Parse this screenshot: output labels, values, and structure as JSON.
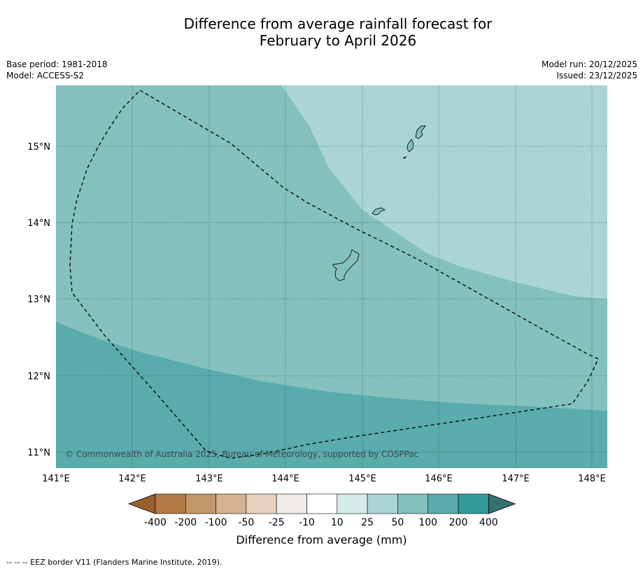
{
  "title_line1": "Difference from average rainfall forecast for",
  "title_line2": "February to April 2026",
  "meta_left": {
    "base_period": "Base period: 1981-2018",
    "model": "Model: ACCESS-S2"
  },
  "meta_right": {
    "model_run": "Model run: 20/12/2025",
    "issued": "Issued: 23/12/2025"
  },
  "map": {
    "lon_labels": [
      "141°E",
      "142°E",
      "143°E",
      "144°E",
      "145°E",
      "146°E",
      "147°E",
      "148°E"
    ],
    "lat_labels": [
      "15°N",
      "14°N",
      "13°N",
      "12°N",
      "11°N"
    ],
    "copyright": "© Commonwealth of Australia 2025, Bureau of Meteorology, supported by COSPPac",
    "fill_colors": {
      "light": "#aad5d4",
      "mid": "#83c0be",
      "dark": "#5aabac"
    }
  },
  "colorbar": {
    "labels": [
      "-400",
      "-200",
      "-100",
      "-50",
      "-25",
      "-10",
      "10",
      "25",
      "50",
      "100",
      "200",
      "400"
    ],
    "colors": [
      "#9a5f2f",
      "#b27b45",
      "#c39669",
      "#d4b190",
      "#e7d0bd",
      "#f0ece8",
      "#ffffff",
      "#d5ebe9",
      "#aad5d4",
      "#83c0be",
      "#5aabac",
      "#339a9a",
      "#33706f"
    ],
    "title": "Difference from average (mm)"
  },
  "footnote": "--  --  -- EEZ border V11 (Flanders Marine Institute, 2019)."
}
